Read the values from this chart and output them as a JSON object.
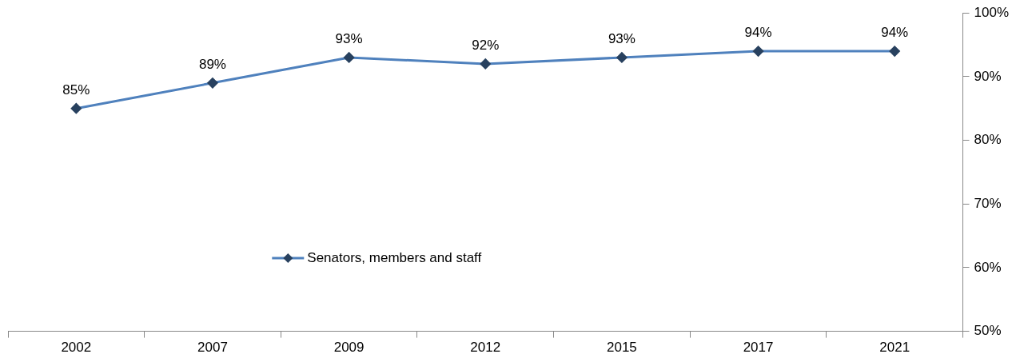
{
  "chart_data": {
    "type": "line",
    "categories": [
      "2002",
      "2007",
      "2009",
      "2012",
      "2015",
      "2017",
      "2021"
    ],
    "series": [
      {
        "name": "Senators, members and staff",
        "color": "#4f81bd",
        "values": [
          85,
          89,
          93,
          92,
          93,
          94,
          94
        ],
        "value_labels": [
          "85%",
          "89%",
          "93%",
          "92%",
          "93%",
          "94%",
          "94%"
        ]
      }
    ],
    "ylim": [
      50,
      100
    ],
    "yticks": [
      {
        "value": 50,
        "label": "50%"
      },
      {
        "value": 60,
        "label": "60%"
      },
      {
        "value": 70,
        "label": "70%"
      },
      {
        "value": 80,
        "label": "80%"
      },
      {
        "value": 90,
        "label": "90%"
      },
      {
        "value": 100,
        "label": "100%"
      }
    ],
    "marker": "diamond",
    "line_style": "solid",
    "grid": false,
    "legend": "bottom left"
  }
}
